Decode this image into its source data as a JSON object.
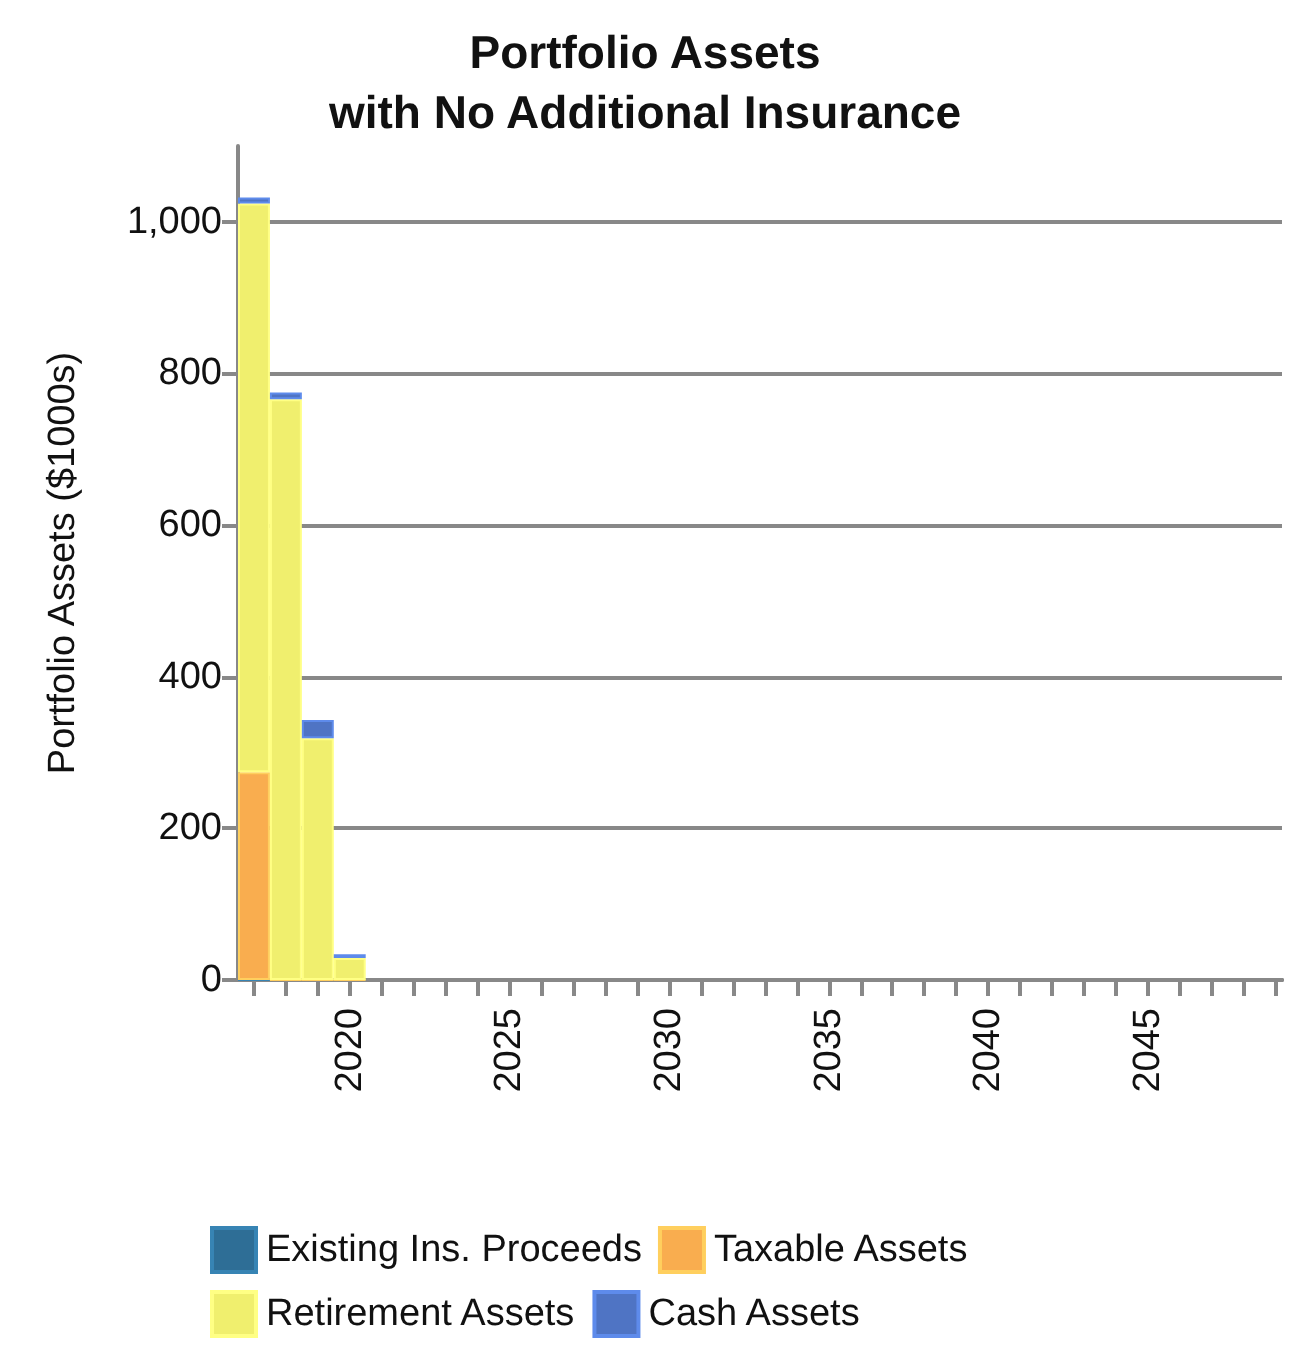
{
  "chart_data": {
    "type": "bar",
    "title": "Portfolio Assets\nwith No Additional Insurance",
    "ylabel": "Portfolio Assets ($1000s)",
    "stacked": true,
    "x": [
      2017,
      2018,
      2019,
      2020
    ],
    "series": [
      {
        "name": "Existing Ins. Proceeds",
        "color": "#2e6e96",
        "values": [
          0,
          0,
          0,
          0
        ]
      },
      {
        "name": "Taxable Assets",
        "color": "#f9ad4f",
        "values": [
          274,
          0,
          0,
          0
        ]
      },
      {
        "name": "Retirement Assets",
        "color": "#f0ef6e",
        "values": [
          750,
          766,
          319,
          29
        ]
      },
      {
        "name": "Cash Assets",
        "color": "#4f74c4",
        "values": [
          8,
          9,
          24,
          5
        ]
      }
    ],
    "xlim": [
      2016.5,
      2049.2
    ],
    "xticks": [
      {
        "value": 2017,
        "label": null
      },
      {
        "value": 2018,
        "label": null
      },
      {
        "value": 2019,
        "label": null
      },
      2020,
      {
        "value": 2021,
        "label": null
      },
      {
        "value": 2022,
        "label": null
      },
      {
        "value": 2023,
        "label": null
      },
      {
        "value": 2024,
        "label": null
      },
      2025,
      {
        "value": 2026,
        "label": null
      },
      {
        "value": 2027,
        "label": null
      },
      {
        "value": 2028,
        "label": null
      },
      {
        "value": 2029,
        "label": null
      },
      2030,
      {
        "value": 2031,
        "label": null
      },
      {
        "value": 2032,
        "label": null
      },
      {
        "value": 2033,
        "label": null
      },
      {
        "value": 2034,
        "label": null
      },
      2035,
      {
        "value": 2036,
        "label": null
      },
      {
        "value": 2037,
        "label": null
      },
      {
        "value": 2038,
        "label": null
      },
      {
        "value": 2039,
        "label": null
      },
      2040,
      {
        "value": 2041,
        "label": null
      },
      {
        "value": 2042,
        "label": null
      },
      {
        "value": 2043,
        "label": null
      },
      {
        "value": 2044,
        "label": null
      },
      2045,
      {
        "value": 2046,
        "label": null
      },
      {
        "value": 2047,
        "label": null
      },
      {
        "value": 2048,
        "label": null
      },
      {
        "value": 2049,
        "label": null
      }
    ],
    "ylim": [
      0,
      1100
    ],
    "yticks": [
      0,
      200,
      400,
      600,
      800,
      {
        "value": 1000,
        "label": "1,000"
      }
    ],
    "grid": "y",
    "legend": "bottom"
  }
}
